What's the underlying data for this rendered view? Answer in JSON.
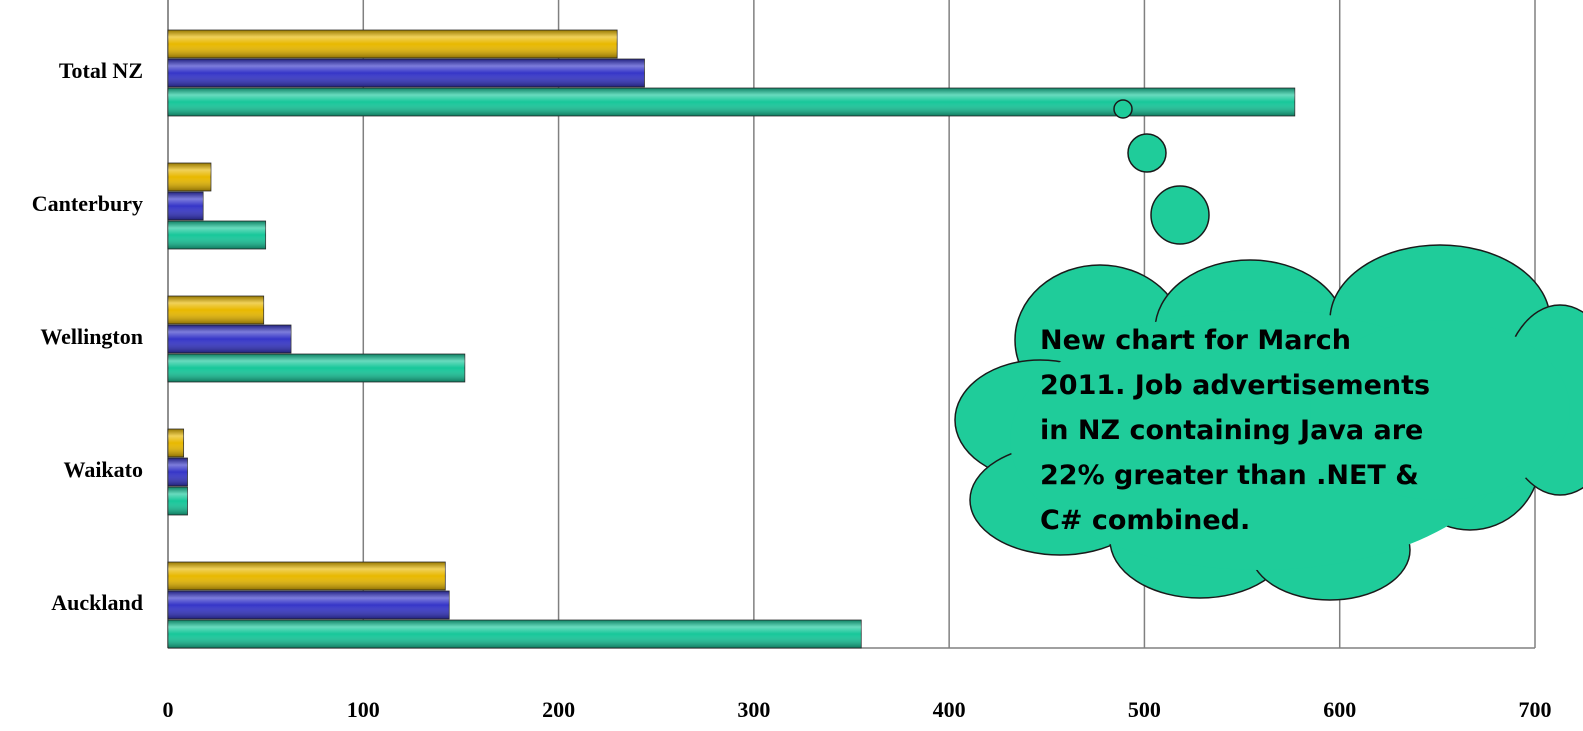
{
  "chart_data": {
    "type": "bar",
    "orientation": "horizontal",
    "categories": [
      "Auckland",
      "Waikato",
      "Wellington",
      "Canterbury",
      "Total NZ"
    ],
    "series": [
      {
        "color": "#17c79a",
        "values": [
          355,
          10,
          152,
          50,
          577
        ]
      },
      {
        "color": "#3636c8",
        "values": [
          144,
          10,
          63,
          18,
          244
        ]
      },
      {
        "color": "#e8b800",
        "values": [
          142,
          8,
          49,
          22,
          230
        ]
      }
    ],
    "xlim": [
      0,
      700
    ],
    "xticks": [
      0,
      100,
      200,
      300,
      400,
      500,
      600,
      700
    ],
    "grid": true,
    "annotation": "New chart  for March\n2011. Job advertisements\nin NZ containing Java are\n22% greater than .NET &\nC# combined."
  }
}
